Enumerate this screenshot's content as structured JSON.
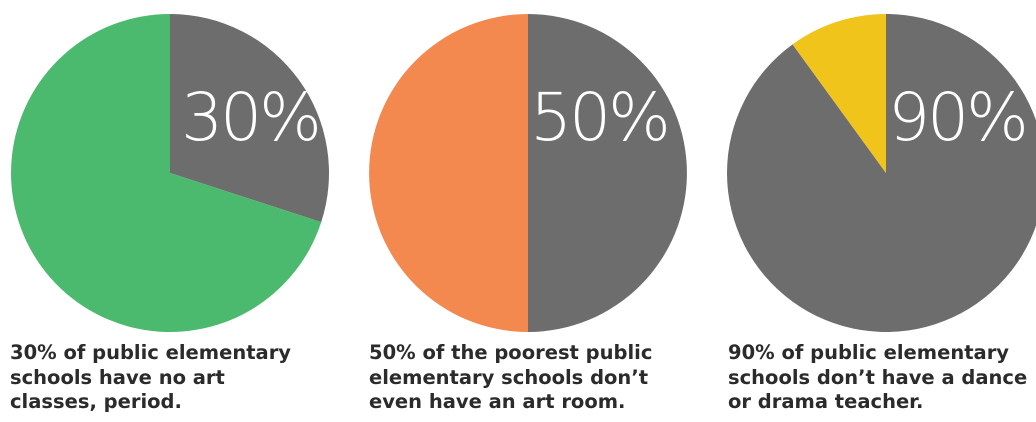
{
  "chart_data": [
    {
      "type": "pie",
      "label": "30%",
      "caption": [
        "30% of public elementary",
        "schools have no art",
        "classes, period."
      ],
      "slices": [
        {
          "value": 30,
          "color": "#6d6d6d"
        },
        {
          "value": 70,
          "color": "#4cba6e"
        }
      ]
    },
    {
      "type": "pie",
      "label": "50%",
      "caption": [
        "50% of  the poorest public",
        "elementary schools don’t",
        "even have an art room."
      ],
      "slices": [
        {
          "value": 50,
          "color": "#6d6d6d"
        },
        {
          "value": 50,
          "color": "#f3894f"
        }
      ]
    },
    {
      "type": "pie",
      "label": "90%",
      "caption": [
        "90% of public elementary",
        "schools don’t have a dance",
        "or drama teacher."
      ],
      "slices": [
        {
          "value": 90,
          "color": "#6d6d6d"
        },
        {
          "value": 10,
          "color": "#f0c41b"
        }
      ]
    }
  ]
}
